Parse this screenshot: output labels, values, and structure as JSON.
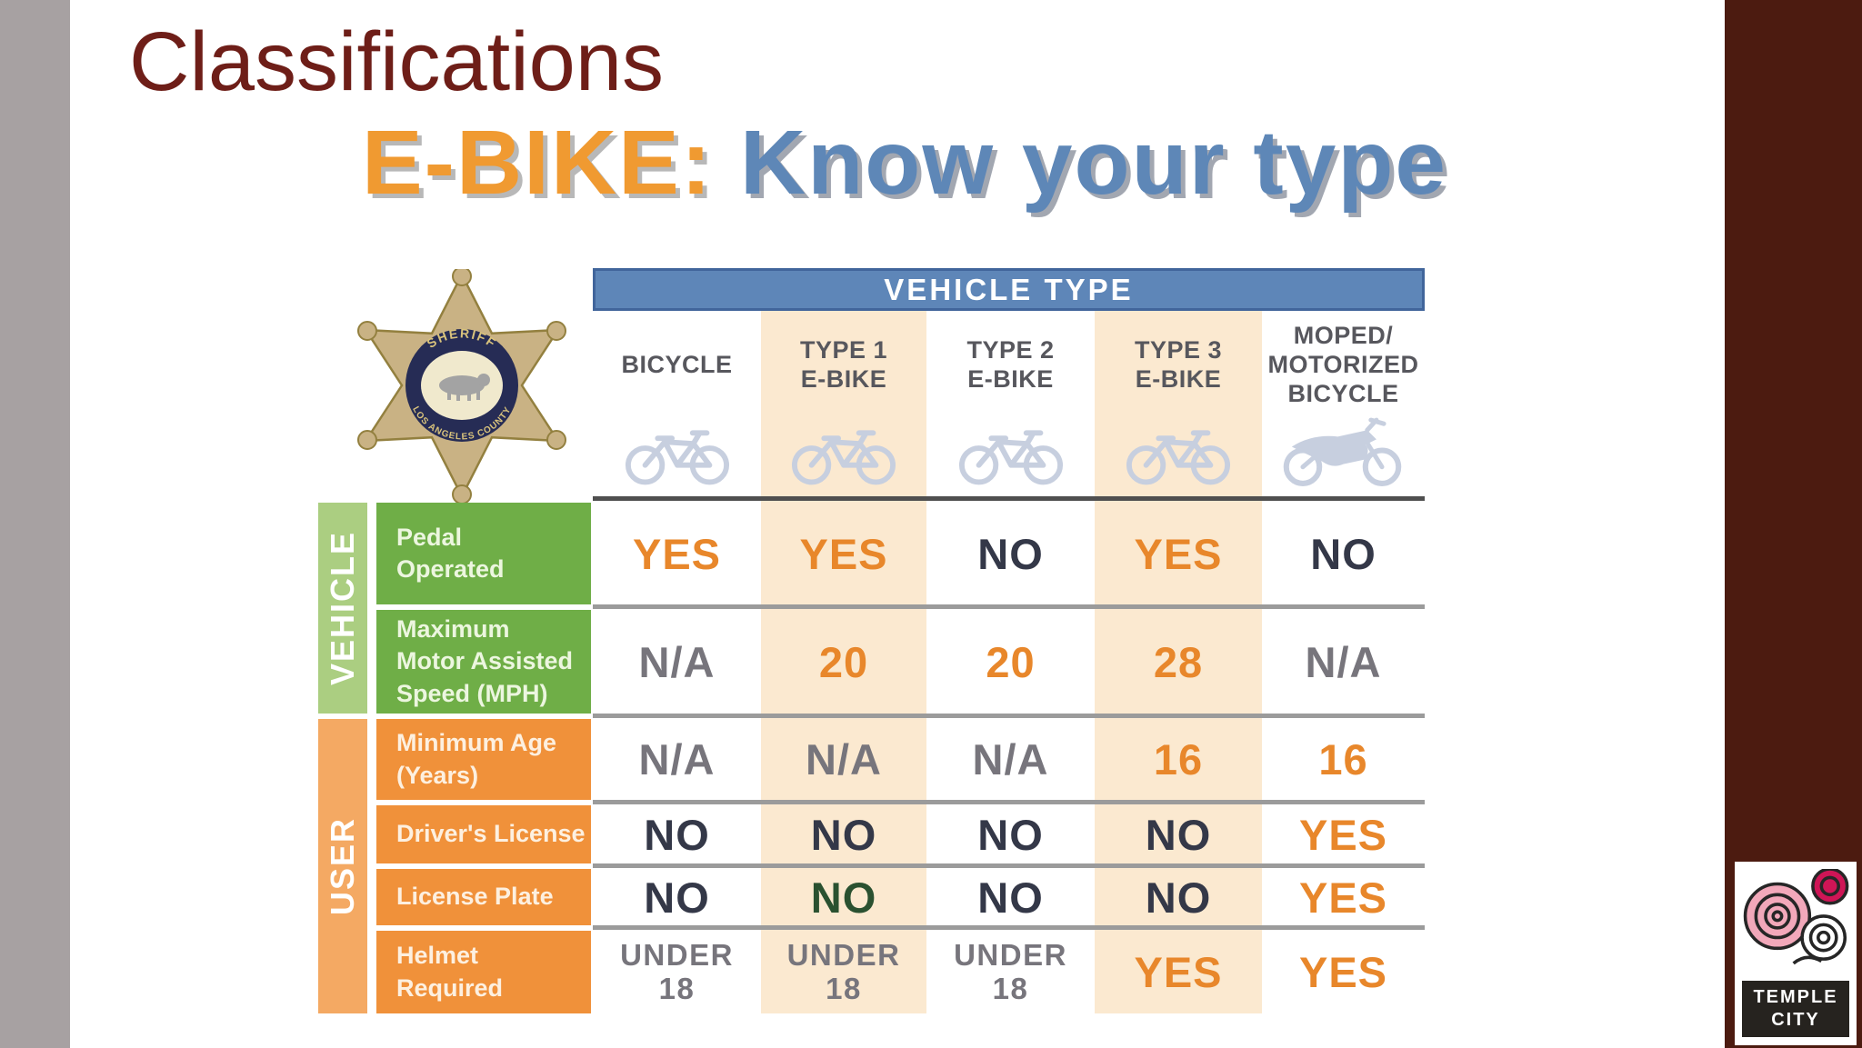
{
  "slide": {
    "title": "Classifications"
  },
  "headline": {
    "prefix": "E-BIKE:",
    "suffix": " Know your type"
  },
  "badge": {
    "arc_top": "SHERIFF",
    "arc_bottom": "LOS ANGELES COUNTY"
  },
  "table": {
    "header": "VEHICLE TYPE",
    "columns": [
      {
        "id": "bicycle",
        "lines": [
          "BICYCLE"
        ],
        "icon": "bicycle-icon",
        "highlight": false
      },
      {
        "id": "type1-ebike",
        "lines": [
          "TYPE 1",
          "E-BIKE"
        ],
        "icon": "bicycle-icon",
        "highlight": true
      },
      {
        "id": "type2-ebike",
        "lines": [
          "TYPE 2",
          "E-BIKE"
        ],
        "icon": "bicycle-icon",
        "highlight": false
      },
      {
        "id": "type3-ebike",
        "lines": [
          "TYPE 3",
          "E-BIKE"
        ],
        "icon": "bicycle-icon",
        "highlight": true
      },
      {
        "id": "moped",
        "lines": [
          "MOPED/",
          "MOTORIZED",
          "BICYCLE"
        ],
        "icon": "moped-icon",
        "highlight": false
      }
    ],
    "sections": [
      {
        "id": "vehicle",
        "label": "VEHICLE"
      },
      {
        "id": "user",
        "label": "USER"
      }
    ],
    "rows": [
      {
        "section": "vehicle",
        "label_lines": [
          "Pedal",
          "Operated"
        ],
        "values": [
          {
            "lines": [
              "YES"
            ],
            "color": "orange"
          },
          {
            "lines": [
              "YES"
            ],
            "color": "orange"
          },
          {
            "lines": [
              "NO"
            ],
            "color": "dark"
          },
          {
            "lines": [
              "YES"
            ],
            "color": "orange"
          },
          {
            "lines": [
              "NO"
            ],
            "color": "dark"
          }
        ]
      },
      {
        "section": "vehicle",
        "label_lines": [
          "Maximum",
          "Motor Assisted",
          "Speed (MPH)"
        ],
        "values": [
          {
            "lines": [
              "N/A"
            ],
            "color": "gray"
          },
          {
            "lines": [
              "20"
            ],
            "color": "orange"
          },
          {
            "lines": [
              "20"
            ],
            "color": "orange"
          },
          {
            "lines": [
              "28"
            ],
            "color": "orange"
          },
          {
            "lines": [
              "N/A"
            ],
            "color": "gray"
          }
        ]
      },
      {
        "section": "user",
        "label_lines": [
          "Minimum Age",
          "(Years)"
        ],
        "values": [
          {
            "lines": [
              "N/A"
            ],
            "color": "gray"
          },
          {
            "lines": [
              "N/A"
            ],
            "color": "gray"
          },
          {
            "lines": [
              "N/A"
            ],
            "color": "gray"
          },
          {
            "lines": [
              "16"
            ],
            "color": "orange"
          },
          {
            "lines": [
              "16"
            ],
            "color": "orange"
          }
        ]
      },
      {
        "section": "user",
        "label_lines": [
          "Driver's License"
        ],
        "values": [
          {
            "lines": [
              "NO"
            ],
            "color": "dark"
          },
          {
            "lines": [
              "NO"
            ],
            "color": "dark"
          },
          {
            "lines": [
              "NO"
            ],
            "color": "dark"
          },
          {
            "lines": [
              "NO"
            ],
            "color": "dark"
          },
          {
            "lines": [
              "YES"
            ],
            "color": "orange"
          }
        ]
      },
      {
        "section": "user",
        "label_lines": [
          "License Plate"
        ],
        "values": [
          {
            "lines": [
              "NO"
            ],
            "color": "dark"
          },
          {
            "lines": [
              "NO"
            ],
            "color": "darkgreen"
          },
          {
            "lines": [
              "NO"
            ],
            "color": "dark"
          },
          {
            "lines": [
              "NO"
            ],
            "color": "dark"
          },
          {
            "lines": [
              "YES"
            ],
            "color": "orange"
          }
        ]
      },
      {
        "section": "user",
        "label_lines": [
          "Helmet",
          "Required"
        ],
        "values": [
          {
            "lines": [
              "UNDER",
              "18"
            ],
            "color": "gray",
            "size": "small"
          },
          {
            "lines": [
              "UNDER",
              "18"
            ],
            "color": "gray",
            "size": "small"
          },
          {
            "lines": [
              "UNDER",
              "18"
            ],
            "color": "gray",
            "size": "small"
          },
          {
            "lines": [
              "YES"
            ],
            "color": "orange"
          },
          {
            "lines": [
              "YES"
            ],
            "color": "orange"
          }
        ]
      }
    ]
  },
  "logo": {
    "lines": [
      "TEMPLE",
      "CITY"
    ]
  },
  "colors": {
    "title_maroon": "#6e1e18",
    "headline_orange": "#f09a31",
    "headline_blue": "#5e87b7",
    "bar_blue": "#5e86b8",
    "row_green": "#6fae47",
    "band_green": "#abce81",
    "row_orange": "#f0913a",
    "band_orange": "#f4a963",
    "column_peach": "#fbe9d0",
    "value_orange": "#e8872b",
    "value_dark": "#343848",
    "value_gray": "#77757c",
    "value_darkgreen": "#2a5130",
    "side_gray": "#a7a1a2",
    "side_maroon": "#4c1b10",
    "icon_blue_gray": "#c7cfdf"
  }
}
